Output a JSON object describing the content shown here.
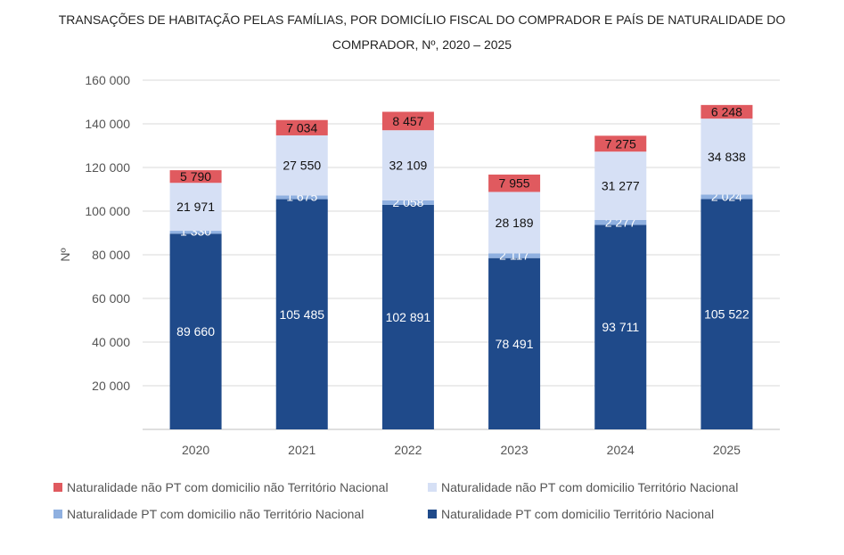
{
  "chart_data": {
    "type": "bar",
    "stacked": true,
    "title_line1": "TRANSAÇÕES DE HABITAÇÃO PELAS FAMÍLIAS, POR DOMICÍLIO FISCAL DO COMPRADOR E PAÍS DE NATURALIDADE DO",
    "title_line2": "COMPRADOR, Nº, 2020 – 2025",
    "ylabel": "Nº",
    "ylim": [
      0,
      160000
    ],
    "yticks": [
      "20 000",
      "40 000",
      "60 000",
      "80 000",
      "100 000",
      "120 000",
      "140 000",
      "160 000"
    ],
    "categories": [
      "2020",
      "2021",
      "2022",
      "2023",
      "2024",
      "2025"
    ],
    "grid": true,
    "legend_placement": "bottom",
    "series": [
      {
        "name": "Naturalidade PT com domicilio Território Nacional",
        "color": "#1f4a8a",
        "label_color": "#ffffff",
        "values": [
          89660,
          105485,
          102891,
          78491,
          93711,
          105522
        ],
        "labels": [
          "89 660",
          "105 485",
          "102 891",
          "78 491",
          "93 711",
          "105 522"
        ]
      },
      {
        "name": "Naturalidade PT com domicilio não Território Nacional",
        "color": "#8fb0e0",
        "label_color": "#ffffff",
        "values": [
          1330,
          1675,
          2058,
          2117,
          2277,
          2024
        ],
        "labels": [
          "1 330",
          "1 675",
          "2 058",
          "2 117",
          "2 277",
          "2 024"
        ]
      },
      {
        "name": "Naturalidade não PT com domicilio Território Nacional",
        "color": "#d6e0f5",
        "label_color": "#111111",
        "values": [
          21971,
          27550,
          32109,
          28189,
          31277,
          34838
        ],
        "labels": [
          "21 971",
          "27 550",
          "32 109",
          "28 189",
          "31 277",
          "34 838"
        ]
      },
      {
        "name": "Naturalidade não PT com domicilio não Território Nacional",
        "color": "#e05a5f",
        "label_color": "#111111",
        "values": [
          5790,
          7034,
          8457,
          7955,
          7275,
          6248
        ],
        "labels": [
          "5 790",
          "7 034",
          "8 457",
          "7 955",
          "7 275",
          "6 248"
        ]
      }
    ]
  }
}
